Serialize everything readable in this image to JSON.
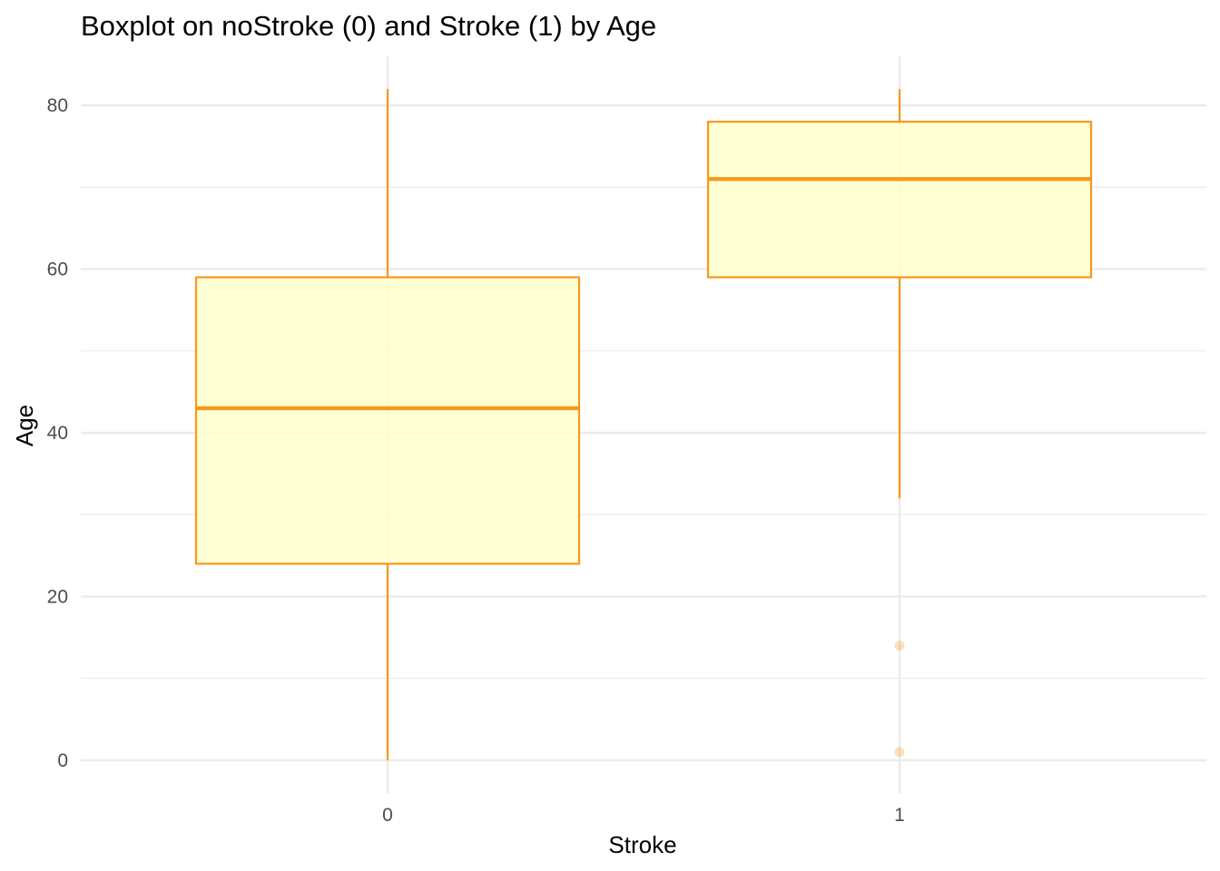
{
  "chart_data": {
    "type": "boxplot",
    "title": "Boxplot on noStroke (0) and Stroke (1) by Age",
    "xlabel": "Stroke",
    "ylabel": "Age",
    "ylim": [
      -4,
      86
    ],
    "y_ticks": [
      0,
      20,
      40,
      60,
      80
    ],
    "y_tick_labels": [
      "0",
      "20",
      "40",
      "60",
      "80"
    ],
    "grid": true,
    "legend": "none",
    "colors": {
      "outline": "#F7981D",
      "fill": "#FFFFCC",
      "grid": "#EBEBEB",
      "outlier": "#F7981D"
    },
    "categories": [
      "0",
      "1"
    ],
    "boxes": [
      {
        "category": "0",
        "whisker_low": 0,
        "q1": 24,
        "median": 43,
        "q3": 59,
        "whisker_high": 82,
        "outliers": []
      },
      {
        "category": "1",
        "whisker_low": 32,
        "q1": 59,
        "median": 71,
        "q3": 78,
        "whisker_high": 82,
        "outliers": [
          14,
          1
        ]
      }
    ]
  }
}
